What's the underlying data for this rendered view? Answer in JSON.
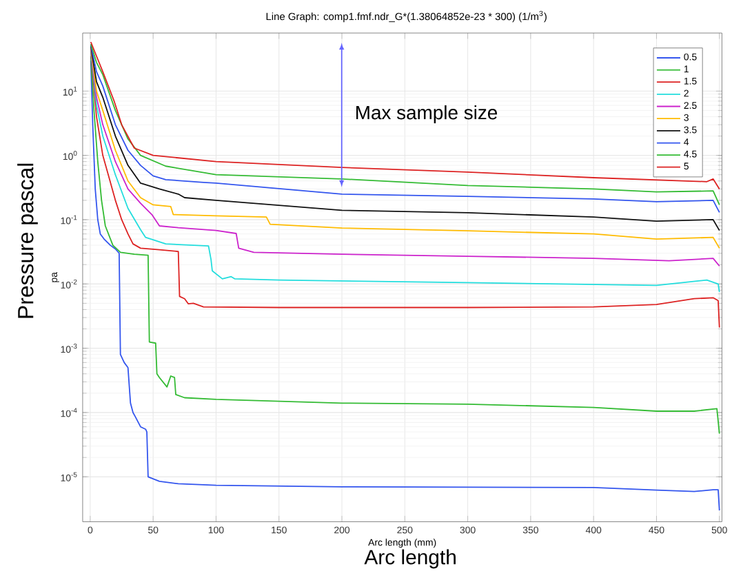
{
  "chart_data": {
    "type": "line",
    "title": "Line Graph: comp1.fmf.ndr_G*(1.38064852e-23 * 300) (1/m$^{3}$)",
    "xlabel": "Arc length (mm)",
    "ylabel": "pa",
    "log": "y",
    "grid": true,
    "legend": "top right",
    "marker": "none",
    "line_style": "solid",
    "xlim": [
      -6,
      502
    ],
    "ylim": [
      2e-06,
      80
    ],
    "xticks": [
      0,
      50,
      100,
      150,
      200,
      250,
      300,
      350,
      400,
      450,
      500
    ],
    "yticks": [
      {
        "value": 1e-05,
        "label": "10$^{-5}$"
      },
      {
        "value": 0.0001,
        "label": "10$^{-4}$"
      },
      {
        "value": 0.001,
        "label": "10$^{-3}$"
      },
      {
        "value": 0.01,
        "label": "10$^{-2}$"
      },
      {
        "value": 0.1,
        "label": "10$^{-1}$"
      },
      {
        "value": 1,
        "label": "10$^{0}$"
      },
      {
        "value": 10,
        "label": "10$^{1}$"
      }
    ],
    "annotations": [
      "Max sample size",
      "Pressure pascal",
      "Arc length"
    ],
    "series": [
      {
        "name": "0.5",
        "color": "#3355ee",
        "x": [
          0.5,
          2,
          4,
          6,
          8,
          11,
          16,
          20,
          23,
          24,
          27,
          30,
          32,
          34,
          36,
          40,
          44,
          45,
          46,
          55,
          70,
          100,
          200,
          300,
          400,
          450,
          480,
          495,
          499,
          500
        ],
        "values": [
          30,
          3,
          0.3,
          0.1,
          0.06,
          0.05,
          0.04,
          0.035,
          0.03,
          0.0008,
          0.0006,
          0.0005,
          0.00014,
          0.0001,
          8.5e-05,
          6e-05,
          5.5e-05,
          5e-05,
          1e-05,
          8.5e-06,
          7.8e-06,
          7.4e-06,
          7e-06,
          6.9e-06,
          6.8e-06,
          6.2e-06,
          5.9e-06,
          6.3e-06,
          6.3e-06,
          3e-06
        ]
      },
      {
        "name": "1",
        "color": "#33bb33",
        "x": [
          0.5,
          3,
          6,
          9,
          12,
          18,
          24,
          35,
          46,
          47,
          52,
          53,
          55,
          61,
          64,
          67,
          68,
          75,
          100,
          200,
          300,
          400,
          450,
          480,
          498,
          500
        ],
        "values": [
          35,
          5,
          0.8,
          0.2,
          0.08,
          0.04,
          0.031,
          0.029,
          0.028,
          0.00125,
          0.0012,
          0.0004,
          0.00035,
          0.00025,
          0.00037,
          0.00035,
          0.00019,
          0.00017,
          0.00016,
          0.00014,
          0.000135,
          0.00012,
          0.000105,
          0.000105,
          0.000115,
          4.7e-05
        ]
      },
      {
        "name": "1.5",
        "color": "#dd2222",
        "x": [
          0.5,
          5,
          10,
          15,
          20,
          25,
          30,
          34,
          40,
          55,
          70,
          71,
          75,
          78,
          82,
          90,
          150,
          200,
          300,
          400,
          450,
          480,
          495,
          499,
          500
        ],
        "values": [
          40,
          4,
          1.0,
          0.45,
          0.2,
          0.1,
          0.06,
          0.042,
          0.036,
          0.034,
          0.032,
          0.0064,
          0.0059,
          0.0049,
          0.005,
          0.0044,
          0.0043,
          0.0043,
          0.0043,
          0.0044,
          0.0048,
          0.0059,
          0.0061,
          0.0055,
          0.0021
        ]
      },
      {
        "name": "2",
        "color": "#22dddd",
        "x": [
          0.5,
          5,
          10,
          20,
          30,
          40,
          44,
          60,
          94,
          96,
          97,
          105,
          112,
          115,
          150,
          300,
          450,
          490,
          499,
          500
        ],
        "values": [
          42,
          6,
          2,
          0.5,
          0.15,
          0.07,
          0.053,
          0.042,
          0.039,
          0.024,
          0.016,
          0.012,
          0.013,
          0.012,
          0.0115,
          0.0105,
          0.0095,
          0.0115,
          0.01,
          0.0075
        ]
      },
      {
        "name": "2.5",
        "color": "#cc22cc",
        "x": [
          0.5,
          5,
          10,
          20,
          30,
          40,
          49,
          55,
          70,
          100,
          116,
          118,
          130,
          200,
          300,
          400,
          460,
          495,
          500
        ],
        "values": [
          45,
          8,
          3,
          0.8,
          0.3,
          0.18,
          0.12,
          0.08,
          0.075,
          0.068,
          0.061,
          0.036,
          0.031,
          0.029,
          0.027,
          0.025,
          0.023,
          0.025,
          0.019
        ]
      },
      {
        "name": "3",
        "color": "#ffbb00",
        "x": [
          0.5,
          5,
          10,
          20,
          30,
          40,
          50,
          64,
          66,
          100,
          140,
          143,
          200,
          300,
          400,
          450,
          495,
          500
        ],
        "values": [
          48,
          10,
          5,
          1.2,
          0.4,
          0.22,
          0.17,
          0.16,
          0.12,
          0.115,
          0.11,
          0.085,
          0.074,
          0.067,
          0.06,
          0.05,
          0.053,
          0.036
        ]
      },
      {
        "name": "3.5",
        "color": "#111111",
        "x": [
          0.5,
          5,
          10,
          20,
          30,
          40,
          55,
          70,
          75,
          100,
          200,
          300,
          400,
          450,
          495,
          500
        ],
        "values": [
          50,
          14,
          8,
          2,
          0.7,
          0.37,
          0.3,
          0.25,
          0.22,
          0.2,
          0.14,
          0.128,
          0.11,
          0.095,
          0.1,
          0.068
        ]
      },
      {
        "name": "4",
        "color": "#3355ee",
        "x": [
          0.5,
          5,
          10,
          20,
          30,
          40,
          50,
          60,
          90,
          100,
          200,
          300,
          400,
          450,
          495,
          500
        ],
        "values": [
          52,
          20,
          12,
          3,
          1.2,
          0.7,
          0.48,
          0.42,
          0.38,
          0.37,
          0.25,
          0.23,
          0.21,
          0.19,
          0.2,
          0.13
        ]
      },
      {
        "name": "4.5",
        "color": "#33bb33",
        "x": [
          0.5,
          5,
          10,
          20,
          30,
          40,
          60,
          100,
          200,
          300,
          400,
          450,
          495,
          500
        ],
        "values": [
          54,
          28,
          18,
          5,
          1.8,
          1.0,
          0.68,
          0.5,
          0.43,
          0.34,
          0.3,
          0.27,
          0.28,
          0.17
        ]
      },
      {
        "name": "5",
        "color": "#dd2222",
        "x": [
          0.5,
          5,
          10,
          19,
          25,
          35,
          50,
          100,
          200,
          300,
          400,
          490,
          495,
          500
        ],
        "values": [
          58,
          35,
          20,
          7,
          3,
          1.3,
          1.0,
          0.8,
          0.65,
          0.55,
          0.45,
          0.39,
          0.43,
          0.3
        ]
      }
    ]
  }
}
